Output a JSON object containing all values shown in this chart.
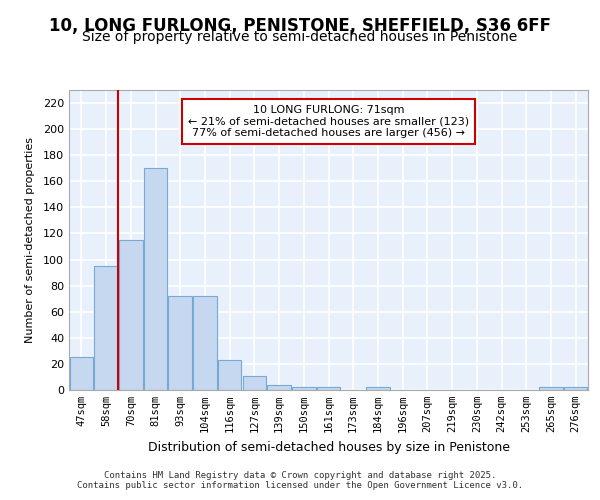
{
  "title1": "10, LONG FURLONG, PENISTONE, SHEFFIELD, S36 6FF",
  "title2": "Size of property relative to semi-detached houses in Penistone",
  "xlabel": "Distribution of semi-detached houses by size in Penistone",
  "ylabel": "Number of semi-detached properties",
  "categories": [
    "47sqm",
    "58sqm",
    "70sqm",
    "81sqm",
    "93sqm",
    "104sqm",
    "116sqm",
    "127sqm",
    "139sqm",
    "150sqm",
    "161sqm",
    "173sqm",
    "184sqm",
    "196sqm",
    "207sqm",
    "219sqm",
    "230sqm",
    "242sqm",
    "253sqm",
    "265sqm",
    "276sqm"
  ],
  "values": [
    25,
    95,
    115,
    170,
    72,
    72,
    23,
    11,
    4,
    2,
    2,
    0,
    2,
    0,
    0,
    0,
    0,
    0,
    0,
    2,
    2
  ],
  "bar_color": "#c5d8f0",
  "bar_edge_color": "#7aa8d4",
  "annotation_text": "10 LONG FURLONG: 71sqm\n← 21% of semi-detached houses are smaller (123)\n77% of semi-detached houses are larger (456) →",
  "annotation_box_color": "#ffffff",
  "annotation_box_edge": "#cc0000",
  "vline_color": "#cc0000",
  "vline_x": 1.5,
  "ylim": [
    0,
    230
  ],
  "yticks": [
    0,
    20,
    40,
    60,
    80,
    100,
    120,
    140,
    160,
    180,
    200,
    220
  ],
  "footer": "Contains HM Land Registry data © Crown copyright and database right 2025.\nContains public sector information licensed under the Open Government Licence v3.0.",
  "bg_color": "#e8f0fc",
  "fig_color": "#ffffff",
  "grid_color": "#ffffff",
  "title1_fontsize": 12,
  "title2_fontsize": 10
}
